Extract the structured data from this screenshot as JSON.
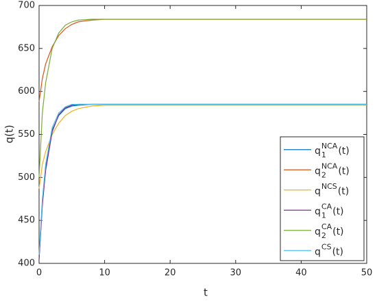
{
  "chart_data": {
    "type": "line",
    "xlabel": "t",
    "ylabel": "q(t)",
    "x": [
      0,
      0.5,
      1,
      2,
      3,
      4,
      5,
      6,
      8,
      10,
      15,
      20,
      30,
      40,
      50
    ],
    "xlim": [
      0,
      50
    ],
    "xticks": [
      0,
      10,
      20,
      30,
      40,
      50
    ],
    "ylim": [
      400,
      700
    ],
    "yticks": [
      400,
      450,
      500,
      550,
      600,
      650,
      700
    ],
    "legend": "lower right",
    "series": [
      {
        "name": {
          "base": "q",
          "sub": "1",
          "sup": "NCA",
          "tail": "(t)"
        },
        "color": "#0072BD",
        "values": [
          405,
          470,
          510,
          555,
          572,
          580,
          583,
          584,
          585,
          585,
          585,
          585,
          585,
          585,
          585
        ]
      },
      {
        "name": {
          "base": "q",
          "sub": "2",
          "sup": "NCA",
          "tail": "(t)"
        },
        "color": "#D95319",
        "values": [
          588,
          615,
          632,
          652,
          665,
          673,
          678,
          681,
          683,
          684,
          684,
          684,
          684,
          684,
          684
        ]
      },
      {
        "name": {
          "base": "q",
          "sup": "NCS",
          "tail": "(t)"
        },
        "color": "#EDB120",
        "values": [
          487,
          515,
          530,
          550,
          563,
          572,
          577,
          580,
          583,
          584,
          584,
          584,
          584,
          584,
          584
        ]
      },
      {
        "name": {
          "base": "q",
          "sub": "1",
          "sup": "CA",
          "tail": "(t)"
        },
        "color": "#7E2F8E",
        "values": [
          405,
          468,
          508,
          553,
          573,
          581,
          584,
          585,
          585,
          585,
          585,
          585,
          585,
          585,
          585
        ]
      },
      {
        "name": {
          "base": "q",
          "sub": "2",
          "sup": "CA",
          "tail": "(t)"
        },
        "color": "#77AC30",
        "values": [
          500,
          575,
          610,
          650,
          668,
          677,
          681,
          683,
          684,
          684,
          684,
          684,
          684,
          684,
          684
        ]
      },
      {
        "name": {
          "base": "q",
          "sup": "CS",
          "tail": "(t)"
        },
        "color": "#4DBEEE",
        "values": [
          410,
          475,
          515,
          558,
          575,
          582,
          585,
          585,
          585,
          585,
          585,
          585,
          585,
          585,
          585
        ]
      }
    ]
  }
}
